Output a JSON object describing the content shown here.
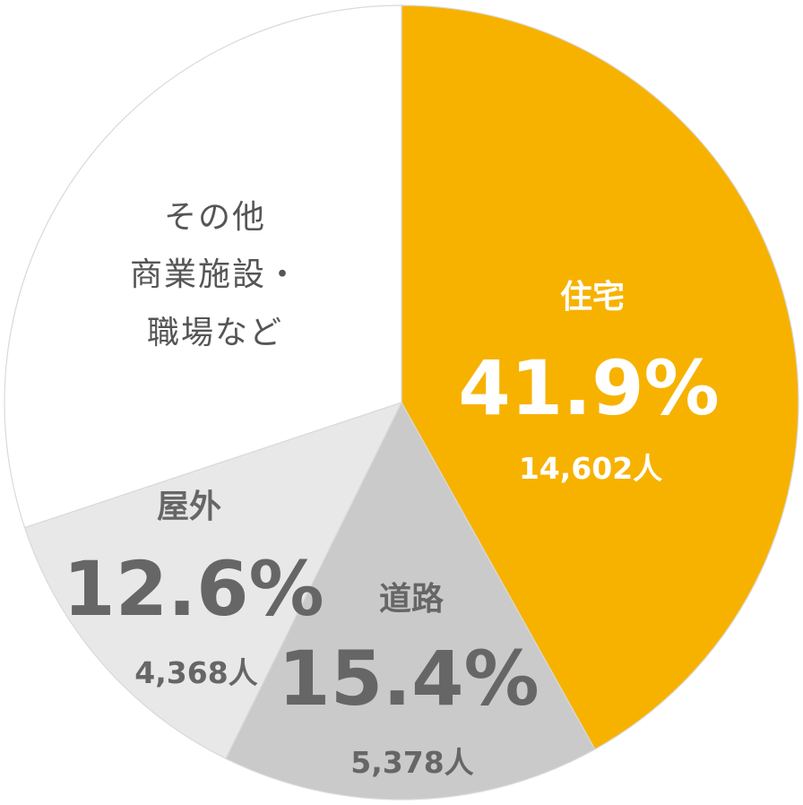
{
  "chart_data": {
    "type": "pie",
    "slices": [
      {
        "label": "住宅",
        "percent_label": "41.9%",
        "count_label": "14,602人",
        "value": 41.9,
        "color": "#F7B200",
        "text_color": "#ffffff"
      },
      {
        "label": "道路",
        "percent_label": "15.4%",
        "count_label": "5,378人",
        "value": 15.4,
        "color": "#CACACA",
        "text_color": "#666666"
      },
      {
        "label": "屋外",
        "percent_label": "12.6%",
        "count_label": "4,368人",
        "value": 12.6,
        "color": "#E8E8E8",
        "text_color": "#666666"
      },
      {
        "label_lines": [
          "その他",
          "商業施設・",
          "職場など"
        ],
        "value": 30.1,
        "color": "#FFFFFF",
        "text_color": "#555555"
      }
    ],
    "start_angle": "top",
    "direction": "clockwise"
  }
}
